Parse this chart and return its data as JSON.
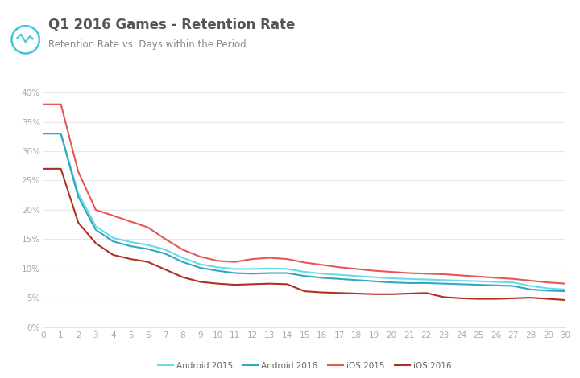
{
  "title": "Q1 2016 Games - Retention Rate",
  "subtitle": "Retention Rate vs. Days within the Period",
  "xlim": [
    0,
    30
  ],
  "ylim": [
    0,
    0.4
  ],
  "yticks": [
    0.0,
    0.05,
    0.1,
    0.15,
    0.2,
    0.25,
    0.3,
    0.35,
    0.4
  ],
  "xticks": [
    0,
    1,
    2,
    3,
    4,
    5,
    6,
    7,
    8,
    9,
    10,
    11,
    12,
    13,
    14,
    15,
    16,
    17,
    18,
    19,
    20,
    21,
    22,
    23,
    24,
    25,
    26,
    27,
    28,
    29,
    30
  ],
  "background_color": "#ffffff",
  "grid_color": "#e8e8e8",
  "series": {
    "Android 2015": {
      "color": "#6dd8ea",
      "linewidth": 1.5,
      "values": [
        0.33,
        0.33,
        0.228,
        0.172,
        0.152,
        0.145,
        0.14,
        0.132,
        0.118,
        0.107,
        0.102,
        0.099,
        0.099,
        0.1,
        0.099,
        0.094,
        0.091,
        0.089,
        0.087,
        0.085,
        0.083,
        0.082,
        0.081,
        0.08,
        0.079,
        0.078,
        0.077,
        0.076,
        0.07,
        0.066,
        0.064
      ]
    },
    "Android 2016": {
      "color": "#30a8be",
      "linewidth": 1.5,
      "values": [
        0.33,
        0.33,
        0.222,
        0.166,
        0.146,
        0.138,
        0.133,
        0.125,
        0.111,
        0.101,
        0.096,
        0.092,
        0.091,
        0.092,
        0.092,
        0.087,
        0.084,
        0.082,
        0.08,
        0.078,
        0.076,
        0.075,
        0.075,
        0.074,
        0.073,
        0.072,
        0.071,
        0.07,
        0.064,
        0.062,
        0.061
      ]
    },
    "iOS 2015": {
      "color": "#e85555",
      "linewidth": 1.5,
      "values": [
        0.38,
        0.38,
        0.265,
        0.2,
        0.19,
        0.18,
        0.17,
        0.15,
        0.132,
        0.12,
        0.113,
        0.111,
        0.116,
        0.118,
        0.116,
        0.11,
        0.106,
        0.102,
        0.099,
        0.096,
        0.094,
        0.092,
        0.091,
        0.09,
        0.088,
        0.086,
        0.084,
        0.082,
        0.079,
        0.076,
        0.074
      ]
    },
    "iOS 2016": {
      "color": "#b03020",
      "linewidth": 1.5,
      "values": [
        0.27,
        0.27,
        0.178,
        0.143,
        0.123,
        0.116,
        0.111,
        0.098,
        0.085,
        0.077,
        0.074,
        0.072,
        0.073,
        0.074,
        0.073,
        0.061,
        0.059,
        0.058,
        0.057,
        0.056,
        0.056,
        0.057,
        0.058,
        0.051,
        0.049,
        0.048,
        0.048,
        0.049,
        0.05,
        0.048,
        0.046
      ]
    }
  },
  "legend_order": [
    "Android 2015",
    "Android 2016",
    "iOS 2015",
    "iOS 2016"
  ],
  "title_fontsize": 12,
  "subtitle_fontsize": 8.5,
  "tick_fontsize": 7.5,
  "legend_fontsize": 7.5,
  "title_color": "#555555",
  "subtitle_color": "#888888",
  "tick_color": "#aaaaaa",
  "logo_color": "#45c5d8"
}
